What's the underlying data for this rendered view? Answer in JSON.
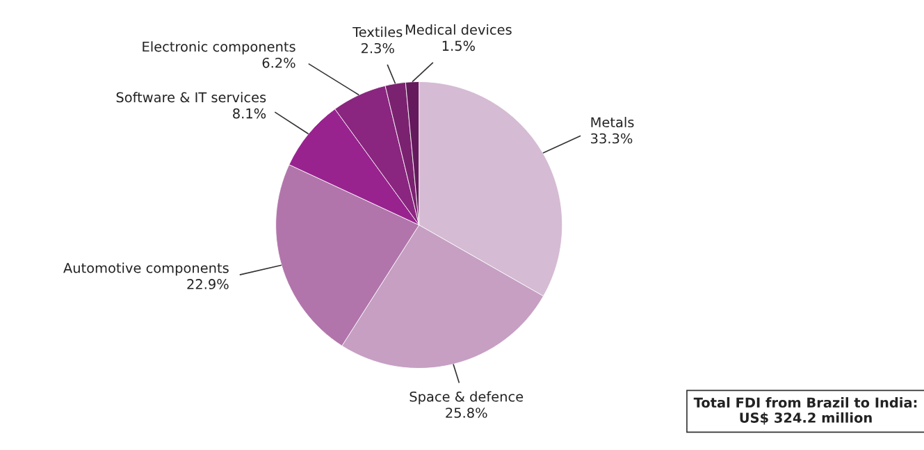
{
  "chart_data": {
    "type": "pie",
    "categories": [
      "Metals",
      "Space & defence",
      "Automotive components",
      "Software & IT services",
      "Electronic components",
      "Textiles",
      "Medical devices"
    ],
    "values": [
      33.3,
      25.8,
      22.9,
      8.1,
      6.2,
      2.3,
      1.5
    ],
    "value_labels": [
      "33.3%",
      "25.8%",
      "22.9%",
      "8.1%",
      "6.2%",
      "2.3%",
      "1.5%"
    ],
    "colors": [
      "#d5bbd3",
      "#c69fc3",
      "#b175ab",
      "#98238f",
      "#8a267f",
      "#7a2270",
      "#641a5c"
    ],
    "annotations": [
      "Total FDI from Brazil to India:\nUS$ 324.2 million"
    ]
  }
}
